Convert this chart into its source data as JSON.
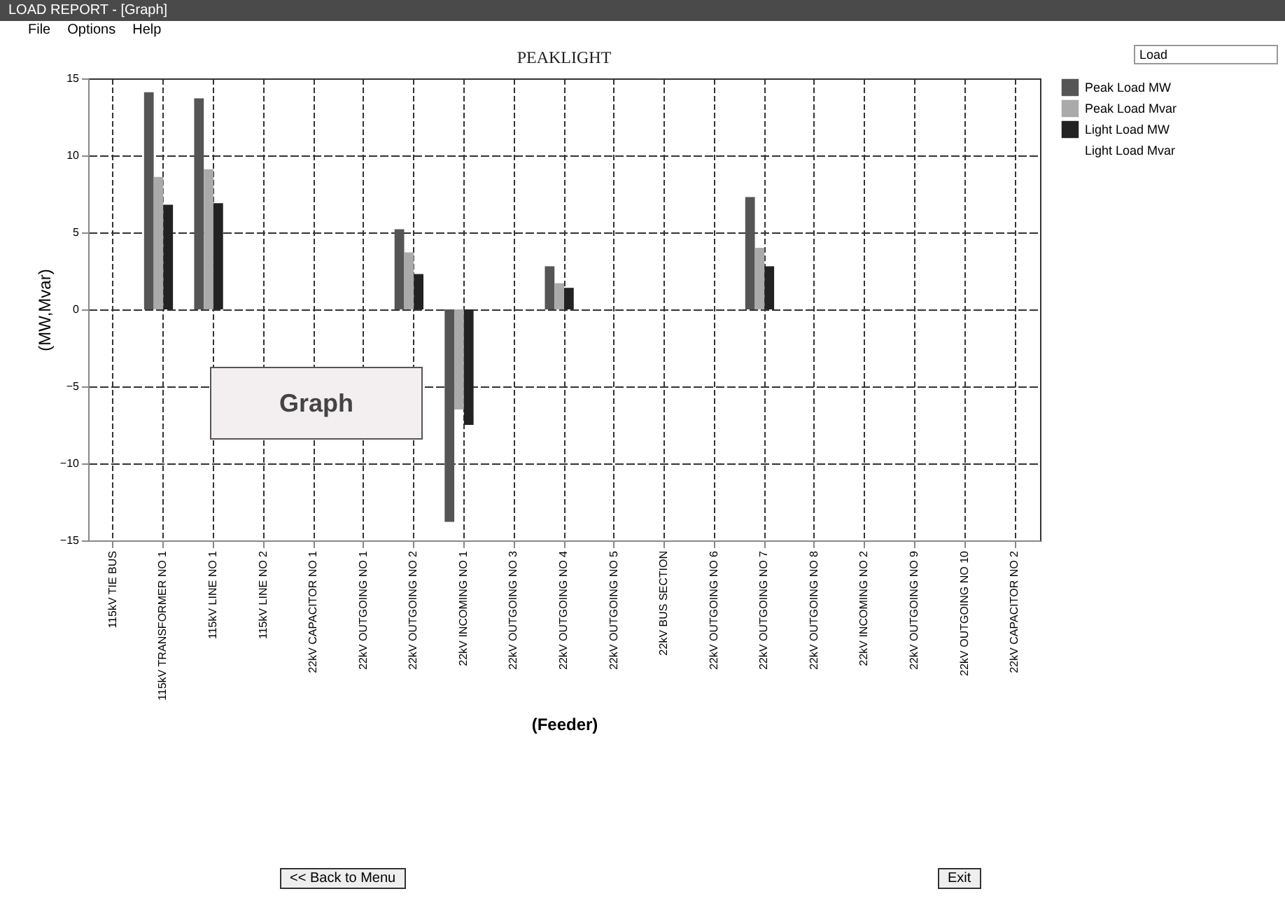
{
  "chart_data": {
    "type": "bar",
    "title": "PEAKLIGHT",
    "xlabel": "(Feeder)",
    "ylabel": "(MW,Mvar)",
    "categories": [
      "115kV TIE BUS",
      "115kV TRANSFORMER NO 1",
      "115kV LINE NO 1",
      "115kV LINE NO 2",
      "22kV CAPACITOR NO 1",
      "22kV OUTGOING NO 1",
      "22kV OUTGOING NO 2",
      "22kV INCOMING NO 1",
      "22kV OUTGOING NO 3",
      "22kV OUTGOING NO 4",
      "22kV OUTGOING NO 5",
      "22kV BUS SECTION",
      "22kV OUTGOING NO 6",
      "22kV OUTGOING NO 7",
      "22kV OUTGOING NO 8",
      "22kV INCOMING NO 2",
      "22kV OUTGOING NO 9",
      "22kV OUTGOING NO 10",
      "22kV CAPACITOR NO 2"
    ],
    "series": [
      {
        "name": "Peak Load MW",
        "color": "#555555",
        "values": [
          null,
          14.1,
          13.7,
          null,
          null,
          null,
          5.2,
          -13.8,
          null,
          2.8,
          null,
          null,
          null,
          7.3,
          null,
          null,
          null,
          null,
          null
        ]
      },
      {
        "name": "Peak Load Mvar",
        "color": "#aaaaaa",
        "values": [
          null,
          8.6,
          9.1,
          null,
          null,
          null,
          3.7,
          -6.5,
          null,
          1.7,
          null,
          null,
          null,
          4.0,
          null,
          null,
          null,
          null,
          null
        ]
      },
      {
        "name": "Light Load MW",
        "color": "#222222",
        "values": [
          null,
          6.8,
          6.9,
          null,
          null,
          null,
          2.3,
          -7.5,
          null,
          1.4,
          null,
          null,
          null,
          2.8,
          null,
          null,
          null,
          null,
          null
        ]
      },
      {
        "name": "Light Load Mvar",
        "values": [
          null,
          null,
          null,
          null,
          null,
          null,
          null,
          null,
          null,
          null,
          null,
          null,
          null,
          null,
          null,
          null,
          null,
          null,
          null
        ]
      }
    ],
    "ylim": [
      -15,
      15
    ],
    "yticks": [
      -15,
      -10,
      -5,
      0,
      5,
      10,
      15
    ],
    "grid": true,
    "legend": "right",
    "annotations": [
      "LOAD REPORT - [Graph]",
      "File",
      "Options",
      "Help",
      "<< Back to Menu",
      "Exit",
      "Load",
      "Graph"
    ]
  }
}
